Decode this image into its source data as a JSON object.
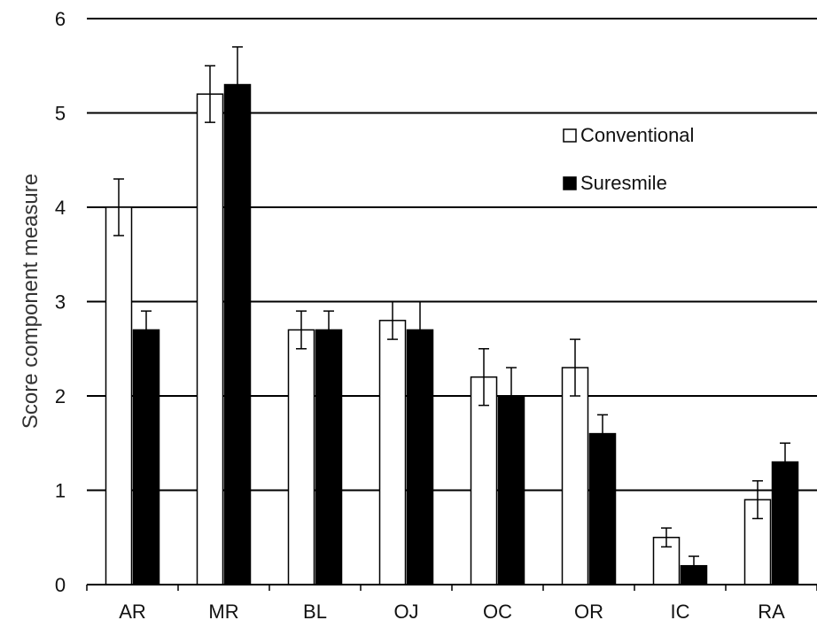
{
  "chart_data": {
    "type": "bar",
    "title": "",
    "xlabel": "",
    "ylabel": "Score component measure",
    "ylim": [
      0,
      6
    ],
    "yticks": [
      0,
      1,
      2,
      3,
      4,
      5,
      6
    ],
    "grid": true,
    "legend_position": "top-right",
    "categories": [
      "AR",
      "MR",
      "BL",
      "OJ",
      "OC",
      "OR",
      "IC",
      "RA"
    ],
    "series": [
      {
        "name": "Conventional",
        "color": "#ffffff",
        "values": [
          4.0,
          5.2,
          2.7,
          2.8,
          2.2,
          2.3,
          0.5,
          0.9
        ],
        "errors": [
          0.3,
          0.3,
          0.2,
          0.2,
          0.3,
          0.3,
          0.1,
          0.2
        ]
      },
      {
        "name": "Suresmile",
        "color": "#000000",
        "values": [
          2.7,
          5.3,
          2.7,
          2.7,
          2.0,
          1.6,
          0.2,
          1.3
        ],
        "errors": [
          0.2,
          0.4,
          0.2,
          0.3,
          0.3,
          0.2,
          0.1,
          0.2
        ]
      }
    ]
  }
}
